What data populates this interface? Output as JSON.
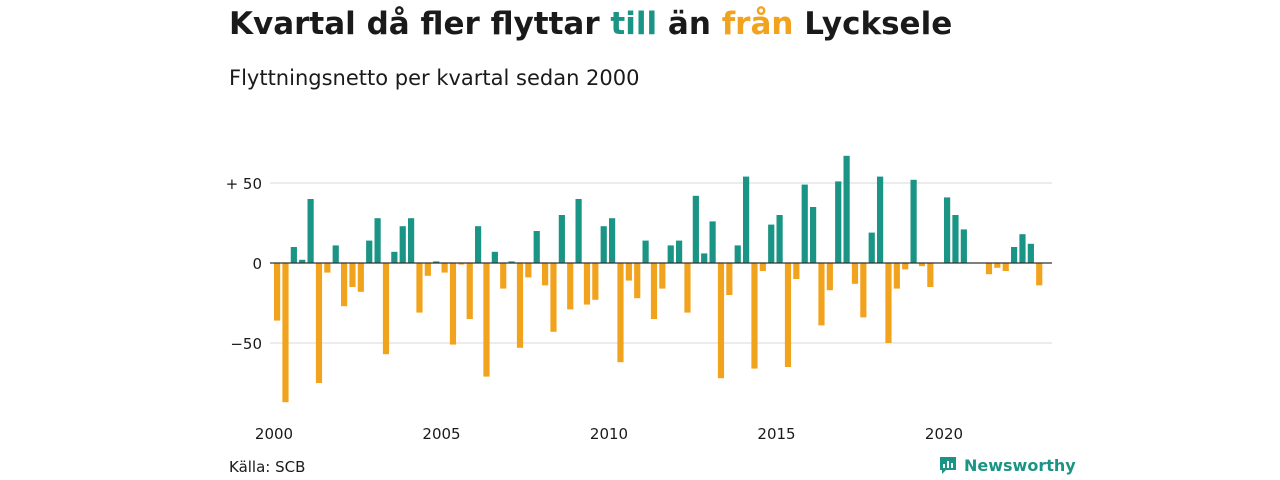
{
  "header": {
    "title_part1": "Kvartal då fler flyttar ",
    "title_till": "till",
    "title_part2": " än ",
    "title_fran": "från",
    "title_part3": " Lycksele",
    "subtitle": "Flyttningsnetto per kvartal sedan 2000"
  },
  "footer": {
    "source": "Källa: SCB",
    "brand": "Newsworthy"
  },
  "colors": {
    "positive": "#1a9484",
    "negative": "#f2a31e",
    "grid": "#d9d9d9",
    "zero_line": "#333333"
  },
  "chart_data": {
    "type": "bar",
    "title": "Kvartal då fler flyttar till än från Lycksele",
    "subtitle": "Flyttningsnetto per kvartal sedan 2000",
    "xlabel": "",
    "ylabel": "",
    "ylim": [
      -90,
      70
    ],
    "y_ticks": [
      {
        "value": 50,
        "label": "+ 50"
      },
      {
        "value": 0,
        "label": "0"
      },
      {
        "value": -50,
        "label": "−50"
      }
    ],
    "x_ticks": [
      {
        "value": 2000,
        "label": "2000"
      },
      {
        "value": 2005,
        "label": "2005"
      },
      {
        "value": 2010,
        "label": "2010"
      },
      {
        "value": 2015,
        "label": "2015"
      },
      {
        "value": 2020,
        "label": "2020"
      }
    ],
    "start_year": 2000,
    "start_quarter": 1,
    "values": [
      -36,
      -87,
      10,
      2,
      40,
      -75,
      -6,
      11,
      -27,
      -15,
      -18,
      14,
      28,
      -57,
      7,
      23,
      28,
      -31,
      -8,
      1,
      -6,
      -51,
      -1,
      -35,
      23,
      -71,
      7,
      -16,
      1,
      -53,
      -9,
      20,
      -14,
      -43,
      30,
      -29,
      40,
      -26,
      -23,
      23,
      28,
      -62,
      -11,
      -22,
      14,
      -35,
      -16,
      11,
      14,
      -31,
      42,
      6,
      26,
      -72,
      -20,
      11,
      54,
      -66,
      -5,
      24,
      30,
      -65,
      -10,
      49,
      35,
      -39,
      -17,
      51,
      67,
      -13,
      -34,
      19,
      54,
      -50,
      -16,
      -4,
      52,
      -2,
      -15,
      0,
      41,
      30,
      21,
      0,
      0,
      -7,
      -3,
      -5,
      10,
      18,
      12,
      -14
    ],
    "grid": true,
    "legend": "none"
  }
}
